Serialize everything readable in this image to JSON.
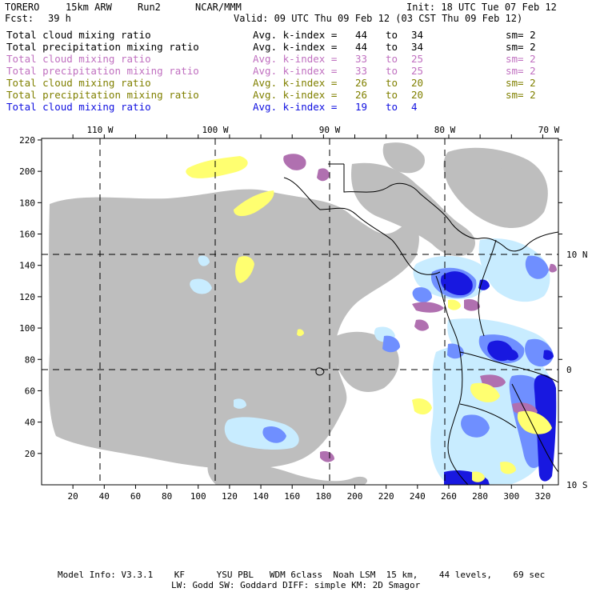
{
  "header": {
    "model": "TORERO",
    "resolution": "15km ARW",
    "run": "Run2",
    "org": "NCAR/MMM",
    "init": "Init: 18 UTC Tue 07 Feb 12",
    "fcst_label": "Fcst:",
    "fcst_value": "39 h",
    "valid": "Valid: 09 UTC Thu 09 Feb 12 (03 CST Thu 09 Feb 12)"
  },
  "legend": [
    {
      "field": "Total cloud mixing ratio",
      "index_label": "Avg. k-index =",
      "from": "44",
      "to_word": "to",
      "to": "34",
      "sm": "sm= 2",
      "color": "#000000"
    },
    {
      "field": "Total precipitation mixing ratio",
      "index_label": "Avg. k-index =",
      "from": "44",
      "to_word": "to",
      "to": "34",
      "sm": "sm= 2",
      "color": "#000000"
    },
    {
      "field": "Total cloud mixing ratio",
      "index_label": "Avg. k-index =",
      "from": "33",
      "to_word": "to",
      "to": "25",
      "sm": "sm= 2",
      "color": "#c070c0"
    },
    {
      "field": "Total precipitation mixing ratio",
      "index_label": "Avg. k-index =",
      "from": "33",
      "to_word": "to",
      "to": "25",
      "sm": "sm= 2",
      "color": "#c070c0"
    },
    {
      "field": "Total cloud mixing ratio",
      "index_label": "Avg. k-index =",
      "from": "26",
      "to_word": "to",
      "to": "20",
      "sm": "sm= 2",
      "color": "#808000"
    },
    {
      "field": "Total precipitation mixing ratio",
      "index_label": "Avg. k-index =",
      "from": "26",
      "to_word": "to",
      "to": "20",
      "sm": "sm= 2",
      "color": "#808000"
    },
    {
      "field": "Total cloud mixing ratio",
      "index_label": "Avg. k-index =",
      "from": "19",
      "to_word": "to",
      "to": "4",
      "sm": "",
      "color": "#1010e0"
    }
  ],
  "map": {
    "lon_labels": [
      "110 W",
      "100 W",
      "90 W",
      "80 W",
      "70 W"
    ],
    "lat_labels": [
      "10 N",
      "0",
      "10 S"
    ],
    "x_ticks": [
      "20",
      "40",
      "60",
      "80",
      "100",
      "120",
      "140",
      "160",
      "180",
      "200",
      "220",
      "240",
      "260",
      "280",
      "300",
      "320"
    ],
    "y_ticks": [
      "20",
      "40",
      "60",
      "80",
      "100",
      "120",
      "140",
      "160",
      "180",
      "200",
      "220"
    ],
    "colors": {
      "cloud_gray": "#bebebe",
      "purple": "#b070b0",
      "yellow": "#ffff70",
      "light_blue": "#c8ecff",
      "mid_blue": "#6f8fff",
      "dark_blue": "#1818e0"
    }
  },
  "footer": {
    "line1": "Model Info: V3.3.1    KF      YSU PBL   WDM 6class  Noah LSM  15 km,    44 levels,    69 sec",
    "line2": "LW: Godd SW: Goddard DIFF: simple KM: 2D Smagor"
  }
}
